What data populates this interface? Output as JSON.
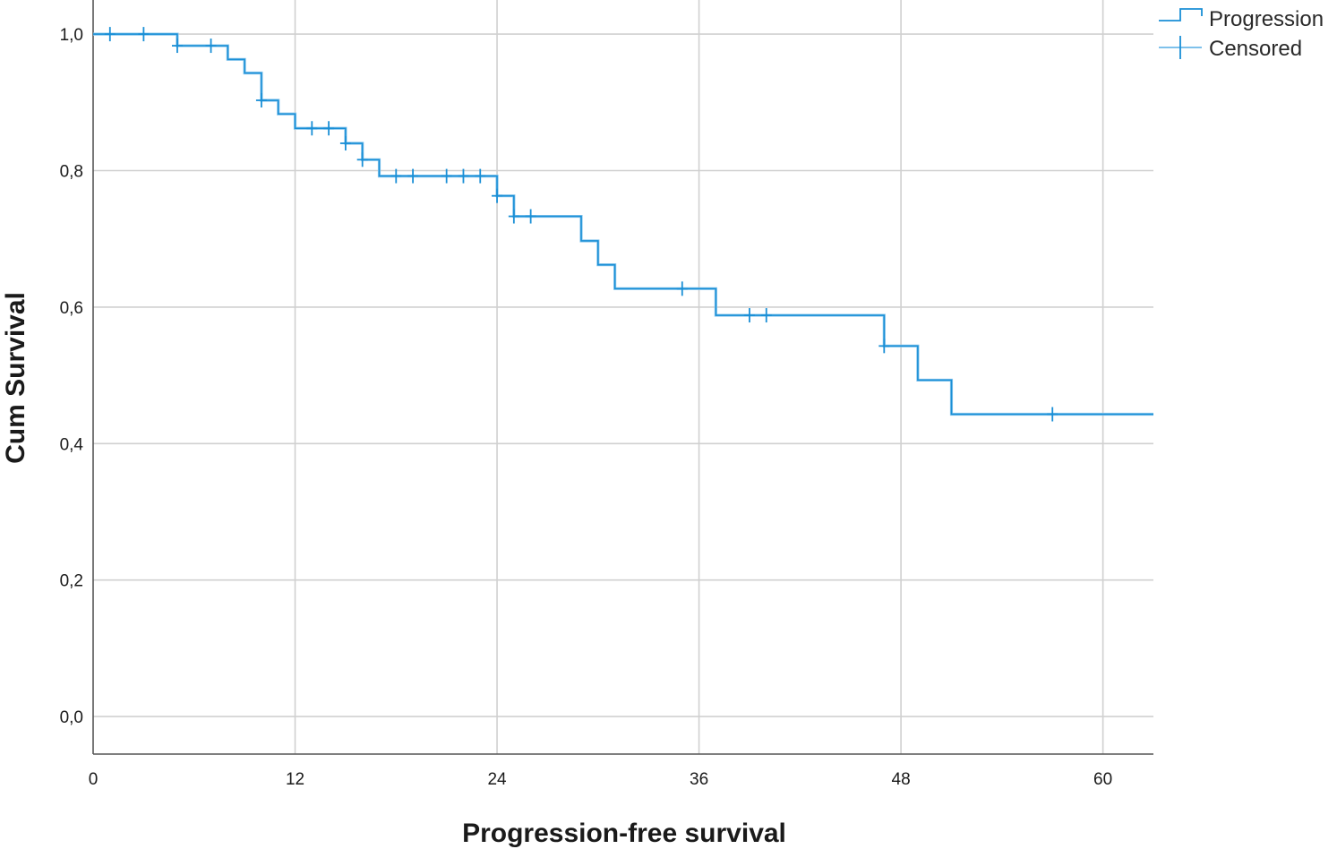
{
  "chart_data": {
    "type": "line",
    "subtype": "kaplan-meier",
    "title": "",
    "xlabel": "Progression-free survival",
    "ylabel": "Cum Survival",
    "xlim": [
      0,
      63
    ],
    "ylim": [
      -0.055,
      1.05
    ],
    "xticks": [
      0,
      12,
      24,
      36,
      48,
      60
    ],
    "xtick_labels": [
      "0",
      "12",
      "24",
      "36",
      "48",
      "60"
    ],
    "yticks": [
      0.0,
      0.2,
      0.4,
      0.6,
      0.8,
      1.0
    ],
    "ytick_labels": [
      "0,0",
      "0,2",
      "0,4",
      "0,6",
      "0,8",
      "1,0"
    ],
    "grid": true,
    "legend_position": "top-right",
    "series": [
      {
        "name": "Progression",
        "color": "#1a8fd6",
        "steps": [
          {
            "x": 0,
            "y": 1.0
          },
          {
            "x": 5,
            "y": 0.983
          },
          {
            "x": 8,
            "y": 0.963
          },
          {
            "x": 9,
            "y": 0.943
          },
          {
            "x": 10,
            "y": 0.903
          },
          {
            "x": 11,
            "y": 0.883
          },
          {
            "x": 12,
            "y": 0.862
          },
          {
            "x": 15,
            "y": 0.84
          },
          {
            "x": 16,
            "y": 0.816
          },
          {
            "x": 17,
            "y": 0.792
          },
          {
            "x": 24,
            "y": 0.763
          },
          {
            "x": 25,
            "y": 0.733
          },
          {
            "x": 29,
            "y": 0.697
          },
          {
            "x": 30,
            "y": 0.662
          },
          {
            "x": 31,
            "y": 0.627
          },
          {
            "x": 37,
            "y": 0.588
          },
          {
            "x": 47,
            "y": 0.543
          },
          {
            "x": 49,
            "y": 0.493
          },
          {
            "x": 51,
            "y": 0.443
          }
        ],
        "end_x": 63
      }
    ],
    "censored": {
      "name": "Censored",
      "color": "#1a8fd6",
      "points": [
        {
          "x": 1,
          "y": 1.0
        },
        {
          "x": 3,
          "y": 1.0
        },
        {
          "x": 5,
          "y": 0.983
        },
        {
          "x": 7,
          "y": 0.983
        },
        {
          "x": 10,
          "y": 0.903
        },
        {
          "x": 13,
          "y": 0.862
        },
        {
          "x": 14,
          "y": 0.862
        },
        {
          "x": 15,
          "y": 0.84
        },
        {
          "x": 16,
          "y": 0.816
        },
        {
          "x": 18,
          "y": 0.792
        },
        {
          "x": 19,
          "y": 0.792
        },
        {
          "x": 21,
          "y": 0.792
        },
        {
          "x": 22,
          "y": 0.792
        },
        {
          "x": 23,
          "y": 0.792
        },
        {
          "x": 24,
          "y": 0.763
        },
        {
          "x": 25,
          "y": 0.733
        },
        {
          "x": 26,
          "y": 0.733
        },
        {
          "x": 35,
          "y": 0.627
        },
        {
          "x": 39,
          "y": 0.588
        },
        {
          "x": 40,
          "y": 0.588
        },
        {
          "x": 47,
          "y": 0.543
        },
        {
          "x": 57,
          "y": 0.443
        }
      ]
    },
    "legend": [
      {
        "label": "Progression",
        "icon": "step-line-icon"
      },
      {
        "label": "Censored",
        "icon": "censor-cross-icon"
      }
    ]
  }
}
